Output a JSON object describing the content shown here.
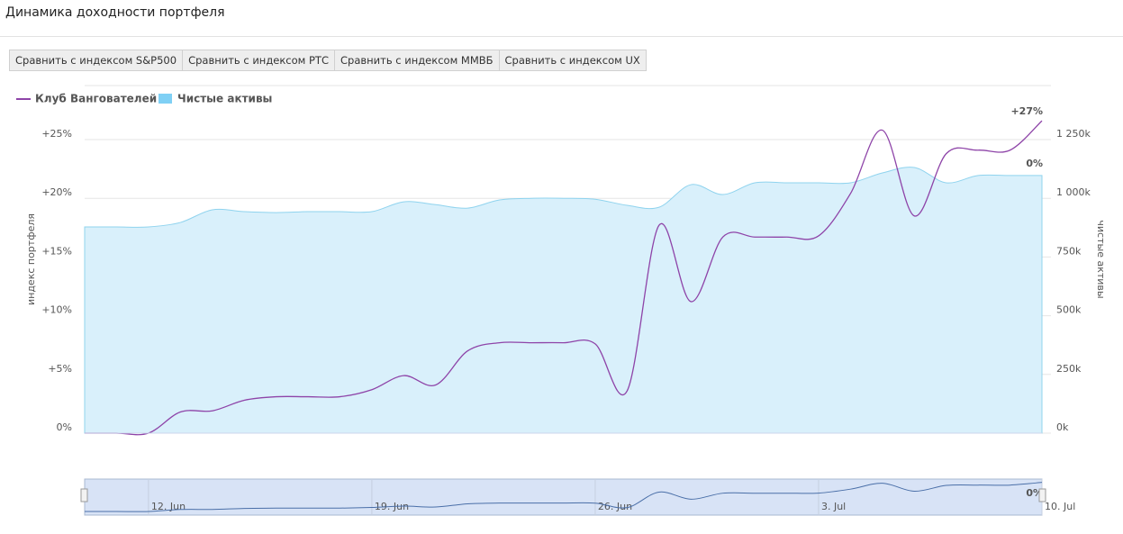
{
  "header": {
    "title": "Динамика доходности портфеля"
  },
  "buttons": [
    "Сравнить с индексом S&P500",
    "Сравнить с индексом РТС",
    "Сравнить с индексом ММВБ",
    "Сравнить с индексом UX"
  ],
  "chart_data": {
    "type": "line",
    "ylabel": "индекс портфеля",
    "y2label": "чистые активы",
    "x": [
      0,
      1,
      2,
      3,
      4,
      5,
      6,
      7,
      8,
      9,
      10,
      11,
      12,
      13,
      14,
      15,
      16,
      17,
      18,
      19,
      20,
      21,
      22,
      23,
      24,
      25,
      26,
      27,
      28,
      29,
      30
    ],
    "xlim": [
      0,
      30
    ],
    "xticks": [
      {
        "value": 2,
        "label": "12. Jun"
      },
      {
        "value": 9,
        "label": "19. Jun"
      },
      {
        "value": 16,
        "label": "26. Jun"
      },
      {
        "value": 23,
        "label": "3. Jul"
      },
      {
        "value": 30,
        "label": "10. Jul"
      }
    ],
    "ylim": [
      0,
      29.6
    ],
    "yticks": [
      {
        "value": 0,
        "label": "0%"
      },
      {
        "value": 5,
        "label": "+5%"
      },
      {
        "value": 10,
        "label": "+10%"
      },
      {
        "value": 15,
        "label": "+15%"
      },
      {
        "value": 20,
        "label": "+20%"
      },
      {
        "value": 25,
        "label": "+25%"
      }
    ],
    "y2lim": [
      0,
      1480000
    ],
    "y2ticks": [
      {
        "value": 0,
        "label": "0k"
      },
      {
        "value": 250000,
        "label": "250k"
      },
      {
        "value": 500000,
        "label": "500k"
      },
      {
        "value": 750000,
        "label": "750k"
      },
      {
        "value": 1000000,
        "label": "1 000k"
      },
      {
        "value": 1250000,
        "label": "1 250k"
      }
    ],
    "grid": true,
    "series": [
      {
        "name": "Клуб Вангователей",
        "color": "#8e44a8",
        "kind": "line",
        "values": [
          0,
          0,
          0,
          1.8,
          1.9,
          2.8,
          3.1,
          3.1,
          3.1,
          3.7,
          4.9,
          4.1,
          7.0,
          7.7,
          7.7,
          7.7,
          7.6,
          3.6,
          17.7,
          11.2,
          16.7,
          16.7,
          16.7,
          16.8,
          20.4,
          25.8,
          18.5,
          23.8,
          24.1,
          24.1,
          26.6
        ]
      },
      {
        "name": "Чистые активы",
        "color": "#7fd0f5",
        "kind": "area",
        "axis": "y2",
        "values": [
          878000,
          878000,
          878000,
          897000,
          951000,
          943000,
          939000,
          943000,
          943000,
          943000,
          985000,
          973000,
          958000,
          993000,
          1000000,
          1000000,
          996000,
          970000,
          962000,
          1058000,
          1016000,
          1066000,
          1066000,
          1066000,
          1066000,
          1108000,
          1131000,
          1066000,
          1097000,
          1097000,
          1097000
        ]
      }
    ],
    "annotations": [
      "+27%",
      "0%"
    ]
  }
}
